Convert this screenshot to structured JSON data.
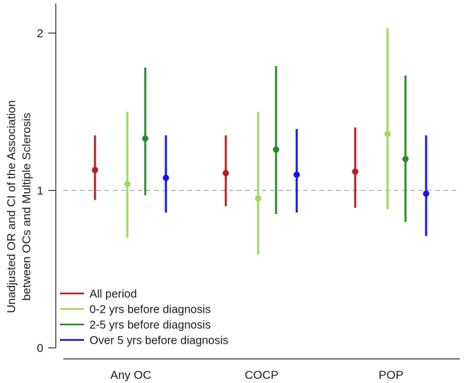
{
  "chart_data": {
    "type": "errorbar",
    "title": "",
    "ylabel_lines": [
      "Unadjusted OR and CI of the Association",
      "between OCs and Multiple Sclerosis"
    ],
    "xlabel": "",
    "categories": [
      "Any OC",
      "COCP",
      "POP"
    ],
    "ylim": [
      0,
      2.2
    ],
    "yticks": [
      "0",
      "1",
      "2"
    ],
    "reference_line": 1,
    "grid": false,
    "legend_position": "bottom-left",
    "series": [
      {
        "name": "All period",
        "color": "#b21f24",
        "points": [
          {
            "or": 1.13,
            "low": 0.94,
            "high": 1.35
          },
          {
            "or": 1.11,
            "low": 0.9,
            "high": 1.35
          },
          {
            "or": 1.12,
            "low": 0.89,
            "high": 1.4
          }
        ]
      },
      {
        "name": "0-2 yrs before diagnosis",
        "color": "#a4d65e",
        "points": [
          {
            "or": 1.04,
            "low": 0.7,
            "high": 1.5
          },
          {
            "or": 0.95,
            "low": 0.59,
            "high": 1.5
          },
          {
            "or": 1.36,
            "low": 0.88,
            "high": 2.03
          }
        ]
      },
      {
        "name": "2-5 yrs before diagnosis",
        "color": "#2a8a2a",
        "points": [
          {
            "or": 1.33,
            "low": 0.97,
            "high": 1.78
          },
          {
            "or": 1.26,
            "low": 0.85,
            "high": 1.79
          },
          {
            "or": 1.2,
            "low": 0.8,
            "high": 1.73
          }
        ]
      },
      {
        "name": "Over 5 yrs before diagnosis",
        "color": "#1414f0",
        "points": [
          {
            "or": 1.08,
            "low": 0.86,
            "high": 1.35
          },
          {
            "or": 1.1,
            "low": 0.86,
            "high": 1.39
          },
          {
            "or": 0.98,
            "low": 0.71,
            "high": 1.35
          }
        ]
      }
    ]
  }
}
